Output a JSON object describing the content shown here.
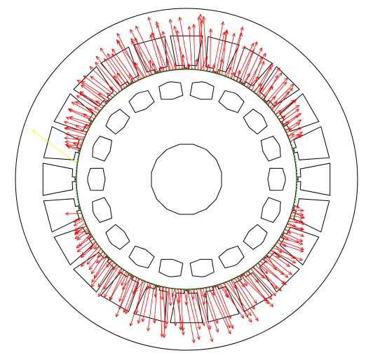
{
  "colors": {
    "background": "#ffffff",
    "outline": "#000000",
    "force_vectors": "#ff0000",
    "highlight_vector": "#ffff00",
    "gap_nodes": "#008000"
  },
  "geometry_model": {
    "stator_slots": 24,
    "rotor_slots": 18,
    "highlighted_vector_count": 1
  }
}
